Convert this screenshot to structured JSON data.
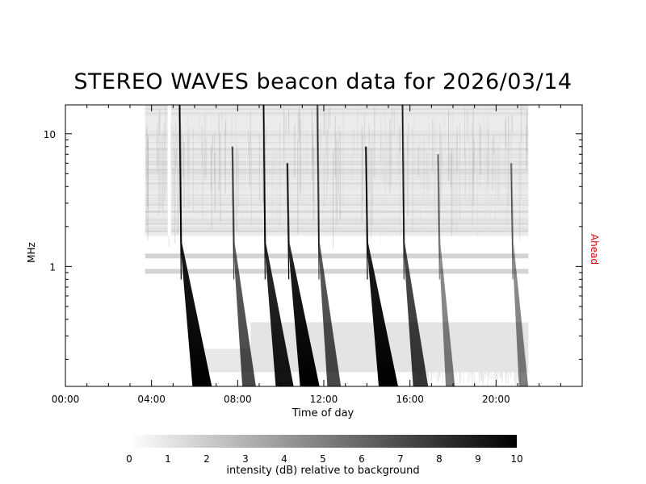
{
  "chart_data": {
    "type": "heatmap",
    "title": "STEREO WAVES beacon data for 2026/03/14",
    "xlabel": "Time of day",
    "ylabel": "MHz",
    "right_label": "Ahead",
    "right_label_color": "#e00000",
    "y_scale": "log",
    "ylim": [
      0.125,
      16.5
    ],
    "x_range_hours": [
      0,
      24
    ],
    "x_ticks": [
      {
        "label": "00:00",
        "hour": 0
      },
      {
        "label": "04:00",
        "hour": 4
      },
      {
        "label": "08:00",
        "hour": 8
      },
      {
        "label": "12:00",
        "hour": 12
      },
      {
        "label": "16:00",
        "hour": 16
      },
      {
        "label": "20:00",
        "hour": 20
      }
    ],
    "y_ticks": [
      {
        "label": "10",
        "value": 10
      },
      {
        "label": "1",
        "value": 1
      }
    ],
    "data_coverage_hours": [
      3.7,
      21.5
    ],
    "data_gap_hours": [
      4.75,
      4.9
    ],
    "background_band_mhz": [
      1.7,
      16.5
    ],
    "interference_bands_mhz": [
      1.2,
      0.92
    ],
    "low_frequency_band_mhz": [
      0.16,
      0.38
    ],
    "bursts": [
      {
        "start_hour": 5.3,
        "peak_intensity_db": 10,
        "top_mhz": 16.5
      },
      {
        "start_hour": 7.75,
        "peak_intensity_db": 6,
        "top_mhz": 8
      },
      {
        "start_hour": 9.2,
        "peak_intensity_db": 9,
        "top_mhz": 16.5
      },
      {
        "start_hour": 10.3,
        "peak_intensity_db": 10,
        "top_mhz": 6
      },
      {
        "start_hour": 11.7,
        "peak_intensity_db": 6,
        "top_mhz": 16.5
      },
      {
        "start_hour": 13.95,
        "peak_intensity_db": 10,
        "top_mhz": 8
      },
      {
        "start_hour": 15.65,
        "peak_intensity_db": 7,
        "top_mhz": 16.5
      },
      {
        "start_hour": 17.3,
        "peak_intensity_db": 3,
        "top_mhz": 7
      },
      {
        "start_hour": 20.7,
        "peak_intensity_db": 3,
        "top_mhz": 6
      }
    ],
    "colorbar": {
      "label": "intensity (dB) relative to background",
      "min": 0,
      "max": 10,
      "ticks": [
        "0",
        "1",
        "2",
        "3",
        "4",
        "5",
        "6",
        "7",
        "8",
        "9",
        "10"
      ],
      "colors": [
        "#ffffff",
        "#000000"
      ]
    }
  }
}
